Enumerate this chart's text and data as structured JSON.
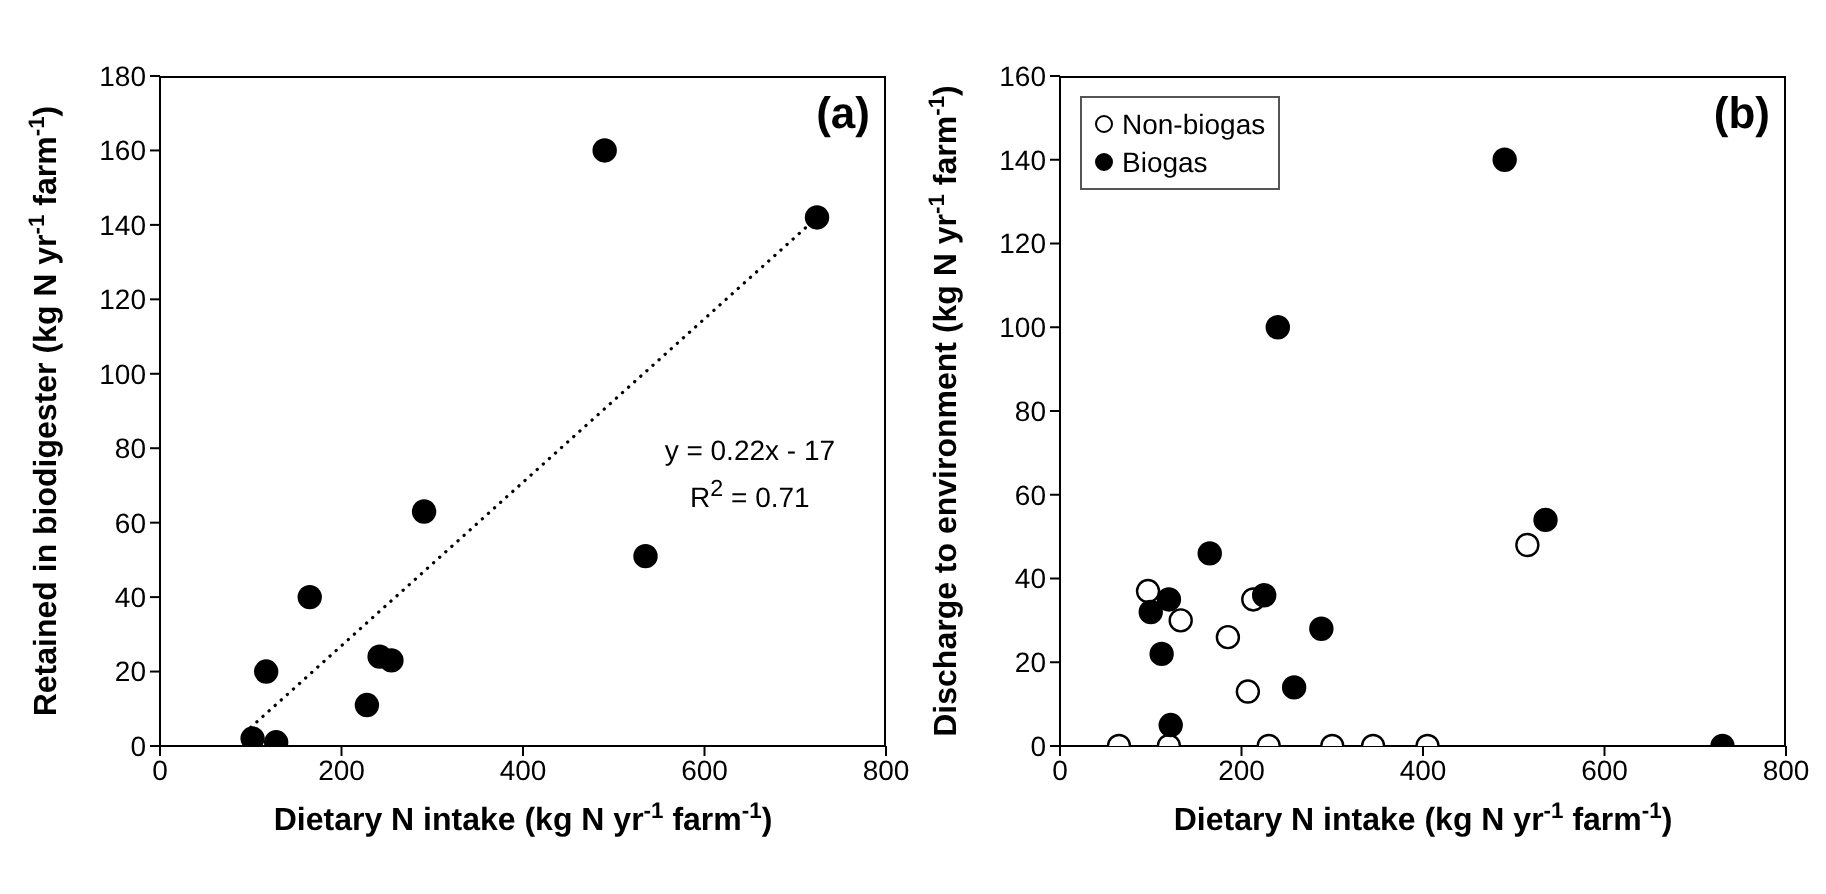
{
  "chart_data": [
    {
      "type": "scatter",
      "title": "(a)",
      "xlabel": "Dietary N intake (kg N yr$^{-1}$ farm$^{-1}$)",
      "ylabel": "Retained in biodigester (kg N yr$^{-1}$ farm$^{-1}$)",
      "annotations": [
        "y = 0.22x - 17",
        "R$^{2}$ = 0.71"
      ],
      "series": [
        {
          "color": "#000000",
          "x": [
            102,
            117,
            128,
            165,
            228,
            242,
            255,
            291,
            490,
            535,
            724
          ],
          "values": [
            2,
            20,
            1,
            40,
            11,
            24,
            23,
            63,
            160,
            51,
            142
          ]
        },
        {
          "type": "line",
          "marker": "none",
          "line_style": "dotted",
          "color": "#000000",
          "x": [
            100,
            724
          ],
          "values": [
            5,
            142
          ]
        }
      ],
      "xlim": [
        0,
        800
      ],
      "xticks": [
        0,
        200,
        400,
        600,
        800
      ],
      "ylim": [
        0,
        180
      ],
      "yticks": [
        0,
        20,
        40,
        60,
        80,
        100,
        120,
        140,
        160,
        180
      ],
      "marker": "circle",
      "grid": false,
      "legend": false
    },
    {
      "type": "scatter",
      "title": "(b)",
      "xlabel": "Dietary N intake (kg N yr$^{-1}$ farm$^{-1}$)",
      "ylabel": "Discharge to environment (kg N yr$^{-1}$ farm$^{-1}$)",
      "series": [
        {
          "name": "Non-biogas",
          "color": "#ffffff",
          "x": [
            65,
            97,
            120,
            133,
            185,
            207,
            213,
            230,
            300,
            345,
            405,
            515
          ],
          "values": [
            0,
            37,
            0,
            30,
            26,
            13,
            35,
            0,
            0,
            0,
            0,
            48
          ]
        },
        {
          "name": "Biogas",
          "color": "#000000",
          "x": [
            100,
            112,
            120,
            122,
            165,
            225,
            240,
            258,
            288,
            490,
            535,
            730
          ],
          "values": [
            32,
            22,
            35,
            5,
            46,
            36,
            100,
            14,
            28,
            140,
            54,
            0
          ]
        }
      ],
      "xlim": [
        0,
        800
      ],
      "xticks": [
        0,
        200,
        400,
        600,
        800
      ],
      "ylim": [
        0,
        160
      ],
      "yticks": [
        0,
        20,
        40,
        60,
        80,
        100,
        120,
        140,
        160
      ],
      "marker": "circle",
      "grid": false,
      "legend": "top left"
    }
  ]
}
